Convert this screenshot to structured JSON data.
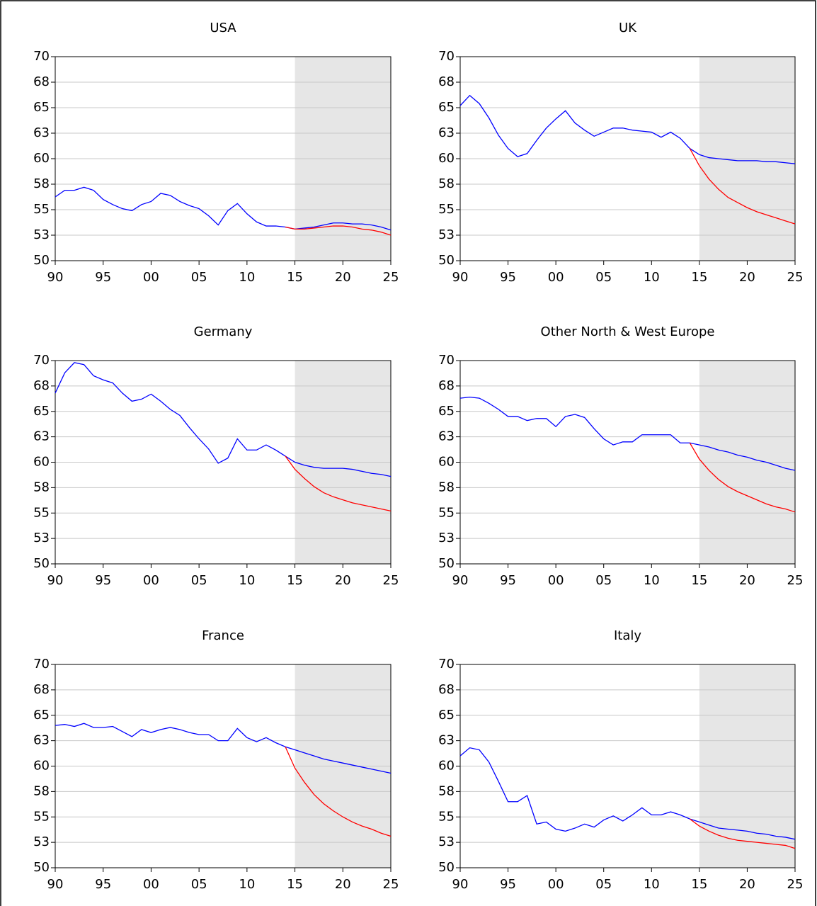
{
  "chart_data": [
    {
      "type": "line",
      "title": "USA",
      "x": [
        1990,
        1991,
        1992,
        1993,
        1994,
        1995,
        1996,
        1997,
        1998,
        1999,
        2000,
        2001,
        2002,
        2003,
        2004,
        2005,
        2006,
        2007,
        2008,
        2009,
        2010,
        2011,
        2012,
        2013,
        2014,
        2015,
        2016,
        2017,
        2018,
        2019,
        2020,
        2021,
        2022,
        2023,
        2024,
        2025
      ],
      "series": [
        {
          "color": "#0000ff",
          "values": [
            56.25,
            56.9,
            56.9,
            57.2,
            56.9,
            56.0,
            55.5,
            55.1,
            54.9,
            55.5,
            55.8,
            56.6,
            56.4,
            55.8,
            55.4,
            55.1,
            54.4,
            53.5,
            54.9,
            55.6,
            54.6,
            53.8,
            53.4,
            53.4,
            53.3,
            53.1,
            53.2,
            53.3,
            53.5,
            53.7,
            53.7,
            53.6,
            53.6,
            53.5,
            53.3,
            53.0
          ]
        },
        {
          "color": "#ff0000",
          "values": [
            null,
            null,
            null,
            null,
            null,
            null,
            null,
            null,
            null,
            null,
            null,
            null,
            null,
            null,
            null,
            null,
            null,
            null,
            null,
            null,
            null,
            null,
            null,
            null,
            53.3,
            53.1,
            53.1,
            53.2,
            53.3,
            53.4,
            53.4,
            53.3,
            53.1,
            53.0,
            52.8,
            52.5
          ]
        }
      ],
      "xlim": [
        1990,
        2025
      ],
      "ylim": [
        50,
        70
      ],
      "shaded_region": [
        2015,
        2025
      ],
      "grid": true,
      "xticks": [
        {
          "value": 1990,
          "label": "90"
        },
        {
          "value": 1995,
          "label": "95"
        },
        {
          "value": 2000,
          "label": "00"
        },
        {
          "value": 2005,
          "label": "05"
        },
        {
          "value": 2010,
          "label": "10"
        },
        {
          "value": 2015,
          "label": "15"
        },
        {
          "value": 2020,
          "label": "20"
        },
        {
          "value": 2025,
          "label": "25"
        }
      ],
      "yticks": [
        50,
        {
          "value": 52.5,
          "label": "53"
        },
        55,
        {
          "value": 57.5,
          "label": "58"
        },
        60,
        {
          "value": 62.5,
          "label": "63"
        },
        65,
        {
          "value": 67.5,
          "label": "68"
        },
        70
      ]
    },
    {
      "type": "line",
      "title": "UK",
      "x": [
        1990,
        1991,
        1992,
        1993,
        1994,
        1995,
        1996,
        1997,
        1998,
        1999,
        2000,
        2001,
        2002,
        2003,
        2004,
        2005,
        2006,
        2007,
        2008,
        2009,
        2010,
        2011,
        2012,
        2013,
        2014,
        2015,
        2016,
        2017,
        2018,
        2019,
        2020,
        2021,
        2022,
        2023,
        2024,
        2025
      ],
      "series": [
        {
          "color": "#0000ff",
          "values": [
            65.2,
            66.2,
            65.4,
            64.0,
            62.3,
            61.0,
            60.2,
            60.5,
            61.8,
            63.0,
            63.9,
            64.7,
            63.5,
            62.8,
            62.2,
            62.6,
            63.0,
            63.0,
            62.8,
            62.7,
            62.6,
            62.1,
            62.6,
            62.0,
            61.0,
            60.4,
            60.1,
            60.0,
            59.9,
            59.8,
            59.8,
            59.8,
            59.7,
            59.7,
            59.6,
            59.5
          ]
        },
        {
          "color": "#ff0000",
          "values": [
            null,
            null,
            null,
            null,
            null,
            null,
            null,
            null,
            null,
            null,
            null,
            null,
            null,
            null,
            null,
            null,
            null,
            null,
            null,
            null,
            null,
            null,
            null,
            null,
            61.0,
            59.3,
            58.0,
            57.0,
            56.2,
            55.7,
            55.2,
            54.8,
            54.5,
            54.2,
            53.9,
            53.6
          ]
        }
      ],
      "xlim": [
        1990,
        2025
      ],
      "ylim": [
        50,
        70
      ],
      "shaded_region": [
        2015,
        2025
      ],
      "grid": true,
      "xticks": [
        {
          "value": 1990,
          "label": "90"
        },
        {
          "value": 1995,
          "label": "95"
        },
        {
          "value": 2000,
          "label": "00"
        },
        {
          "value": 2005,
          "label": "05"
        },
        {
          "value": 2010,
          "label": "10"
        },
        {
          "value": 2015,
          "label": "15"
        },
        {
          "value": 2020,
          "label": "20"
        },
        {
          "value": 2025,
          "label": "25"
        }
      ],
      "yticks": [
        50,
        {
          "value": 52.5,
          "label": "53"
        },
        55,
        {
          "value": 57.5,
          "label": "58"
        },
        60,
        {
          "value": 62.5,
          "label": "63"
        },
        65,
        {
          "value": 67.5,
          "label": "68"
        },
        70
      ]
    },
    {
      "type": "line",
      "title": "Germany",
      "x": [
        1990,
        1991,
        1992,
        1993,
        1994,
        1995,
        1996,
        1997,
        1998,
        1999,
        2000,
        2001,
        2002,
        2003,
        2004,
        2005,
        2006,
        2007,
        2008,
        2009,
        2010,
        2011,
        2012,
        2013,
        2014,
        2015,
        2016,
        2017,
        2018,
        2019,
        2020,
        2021,
        2022,
        2023,
        2024,
        2025
      ],
      "series": [
        {
          "color": "#0000ff",
          "values": [
            66.8,
            68.8,
            69.8,
            69.6,
            68.5,
            68.1,
            67.8,
            66.8,
            66.0,
            66.2,
            66.7,
            66.0,
            65.2,
            64.6,
            63.4,
            62.3,
            61.3,
            59.9,
            60.4,
            62.3,
            61.2,
            61.2,
            61.7,
            61.2,
            60.6,
            60.0,
            59.7,
            59.5,
            59.4,
            59.4,
            59.4,
            59.3,
            59.1,
            58.9,
            58.8,
            58.6
          ]
        },
        {
          "color": "#ff0000",
          "values": [
            null,
            null,
            null,
            null,
            null,
            null,
            null,
            null,
            null,
            null,
            null,
            null,
            null,
            null,
            null,
            null,
            null,
            null,
            null,
            null,
            null,
            null,
            null,
            null,
            60.6,
            59.3,
            58.4,
            57.6,
            57.0,
            56.6,
            56.3,
            56.0,
            55.8,
            55.6,
            55.4,
            55.2
          ]
        }
      ],
      "xlim": [
        1990,
        2025
      ],
      "ylim": [
        50,
        70
      ],
      "shaded_region": [
        2015,
        2025
      ],
      "grid": true,
      "xticks": [
        {
          "value": 1990,
          "label": "90"
        },
        {
          "value": 1995,
          "label": "95"
        },
        {
          "value": 2000,
          "label": "00"
        },
        {
          "value": 2005,
          "label": "05"
        },
        {
          "value": 2010,
          "label": "10"
        },
        {
          "value": 2015,
          "label": "15"
        },
        {
          "value": 2020,
          "label": "20"
        },
        {
          "value": 2025,
          "label": "25"
        }
      ],
      "yticks": [
        50,
        {
          "value": 52.5,
          "label": "53"
        },
        55,
        {
          "value": 57.5,
          "label": "58"
        },
        60,
        {
          "value": 62.5,
          "label": "63"
        },
        65,
        {
          "value": 67.5,
          "label": "68"
        },
        70
      ]
    },
    {
      "type": "line",
      "title": "Other North & West Europe",
      "x": [
        1990,
        1991,
        1992,
        1993,
        1994,
        1995,
        1996,
        1997,
        1998,
        1999,
        2000,
        2001,
        2002,
        2003,
        2004,
        2005,
        2006,
        2007,
        2008,
        2009,
        2010,
        2011,
        2012,
        2013,
        2014,
        2015,
        2016,
        2017,
        2018,
        2019,
        2020,
        2021,
        2022,
        2023,
        2024,
        2025
      ],
      "series": [
        {
          "color": "#0000ff",
          "values": [
            66.3,
            66.4,
            66.3,
            65.8,
            65.2,
            64.5,
            64.5,
            64.1,
            64.3,
            64.3,
            63.5,
            64.5,
            64.7,
            64.4,
            63.3,
            62.3,
            61.7,
            62.0,
            62.0,
            62.7,
            62.7,
            62.7,
            62.7,
            61.9,
            61.9,
            61.7,
            61.5,
            61.2,
            61.0,
            60.7,
            60.5,
            60.2,
            60.0,
            59.7,
            59.4,
            59.2
          ]
        },
        {
          "color": "#ff0000",
          "values": [
            null,
            null,
            null,
            null,
            null,
            null,
            null,
            null,
            null,
            null,
            null,
            null,
            null,
            null,
            null,
            null,
            null,
            null,
            null,
            null,
            null,
            null,
            null,
            null,
            61.9,
            60.3,
            59.2,
            58.3,
            57.6,
            57.1,
            56.7,
            56.3,
            55.9,
            55.6,
            55.4,
            55.1
          ]
        }
      ],
      "xlim": [
        1990,
        2025
      ],
      "ylim": [
        50,
        70
      ],
      "shaded_region": [
        2015,
        2025
      ],
      "grid": true,
      "xticks": [
        {
          "value": 1990,
          "label": "90"
        },
        {
          "value": 1995,
          "label": "95"
        },
        {
          "value": 2000,
          "label": "00"
        },
        {
          "value": 2005,
          "label": "05"
        },
        {
          "value": 2010,
          "label": "10"
        },
        {
          "value": 2015,
          "label": "15"
        },
        {
          "value": 2020,
          "label": "20"
        },
        {
          "value": 2025,
          "label": "25"
        }
      ],
      "yticks": [
        50,
        {
          "value": 52.5,
          "label": "53"
        },
        55,
        {
          "value": 57.5,
          "label": "58"
        },
        60,
        {
          "value": 62.5,
          "label": "63"
        },
        65,
        {
          "value": 67.5,
          "label": "68"
        },
        70
      ]
    },
    {
      "type": "line",
      "title": "France",
      "x": [
        1990,
        1991,
        1992,
        1993,
        1994,
        1995,
        1996,
        1997,
        1998,
        1999,
        2000,
        2001,
        2002,
        2003,
        2004,
        2005,
        2006,
        2007,
        2008,
        2009,
        2010,
        2011,
        2012,
        2013,
        2014,
        2015,
        2016,
        2017,
        2018,
        2019,
        2020,
        2021,
        2022,
        2023,
        2024,
        2025
      ],
      "series": [
        {
          "color": "#0000ff",
          "values": [
            64.0,
            64.1,
            63.9,
            64.2,
            63.8,
            63.8,
            63.9,
            63.4,
            62.9,
            63.6,
            63.3,
            63.6,
            63.8,
            63.6,
            63.3,
            63.1,
            63.1,
            62.5,
            62.5,
            63.7,
            62.8,
            62.4,
            62.8,
            62.3,
            61.9,
            61.6,
            61.3,
            61.0,
            60.7,
            60.5,
            60.3,
            60.1,
            59.9,
            59.7,
            59.5,
            59.3
          ]
        },
        {
          "color": "#ff0000",
          "values": [
            null,
            null,
            null,
            null,
            null,
            null,
            null,
            null,
            null,
            null,
            null,
            null,
            null,
            null,
            null,
            null,
            null,
            null,
            null,
            null,
            null,
            null,
            null,
            null,
            61.9,
            59.8,
            58.4,
            57.2,
            56.3,
            55.6,
            55.0,
            54.5,
            54.1,
            53.8,
            53.4,
            53.1
          ]
        }
      ],
      "xlim": [
        1990,
        2025
      ],
      "ylim": [
        50,
        70
      ],
      "shaded_region": [
        2015,
        2025
      ],
      "grid": true,
      "xticks": [
        {
          "value": 1990,
          "label": "90"
        },
        {
          "value": 1995,
          "label": "95"
        },
        {
          "value": 2000,
          "label": "00"
        },
        {
          "value": 2005,
          "label": "05"
        },
        {
          "value": 2010,
          "label": "10"
        },
        {
          "value": 2015,
          "label": "15"
        },
        {
          "value": 2020,
          "label": "20"
        },
        {
          "value": 2025,
          "label": "25"
        }
      ],
      "yticks": [
        50,
        {
          "value": 52.5,
          "label": "53"
        },
        55,
        {
          "value": 57.5,
          "label": "58"
        },
        60,
        {
          "value": 62.5,
          "label": "63"
        },
        65,
        {
          "value": 67.5,
          "label": "68"
        },
        70
      ]
    },
    {
      "type": "line",
      "title": "Italy",
      "x": [
        1990,
        1991,
        1992,
        1993,
        1994,
        1995,
        1996,
        1997,
        1998,
        1999,
        2000,
        2001,
        2002,
        2003,
        2004,
        2005,
        2006,
        2007,
        2008,
        2009,
        2010,
        2011,
        2012,
        2013,
        2014,
        2015,
        2016,
        2017,
        2018,
        2019,
        2020,
        2021,
        2022,
        2023,
        2024,
        2025
      ],
      "series": [
        {
          "color": "#0000ff",
          "values": [
            61.0,
            61.8,
            61.6,
            60.4,
            58.5,
            56.5,
            56.5,
            57.1,
            54.3,
            54.5,
            53.8,
            53.6,
            53.9,
            54.3,
            54.0,
            54.7,
            55.1,
            54.6,
            55.2,
            55.9,
            55.2,
            55.2,
            55.5,
            55.2,
            54.8,
            54.5,
            54.2,
            53.9,
            53.8,
            53.7,
            53.6,
            53.4,
            53.3,
            53.1,
            53.0,
            52.8
          ]
        },
        {
          "color": "#ff0000",
          "values": [
            null,
            null,
            null,
            null,
            null,
            null,
            null,
            null,
            null,
            null,
            null,
            null,
            null,
            null,
            null,
            null,
            null,
            null,
            null,
            null,
            null,
            null,
            null,
            null,
            54.8,
            54.1,
            53.6,
            53.2,
            52.9,
            52.7,
            52.6,
            52.5,
            52.4,
            52.3,
            52.2,
            51.9
          ]
        }
      ],
      "xlim": [
        1990,
        2025
      ],
      "ylim": [
        50,
        70
      ],
      "shaded_region": [
        2015,
        2025
      ],
      "grid": true,
      "xticks": [
        {
          "value": 1990,
          "label": "90"
        },
        {
          "value": 1995,
          "label": "95"
        },
        {
          "value": 2000,
          "label": "00"
        },
        {
          "value": 2005,
          "label": "05"
        },
        {
          "value": 2010,
          "label": "10"
        },
        {
          "value": 2015,
          "label": "15"
        },
        {
          "value": 2020,
          "label": "20"
        },
        {
          "value": 2025,
          "label": "25"
        }
      ],
      "yticks": [
        50,
        {
          "value": 52.5,
          "label": "53"
        },
        55,
        {
          "value": 57.5,
          "label": "58"
        },
        60,
        {
          "value": 62.5,
          "label": "63"
        },
        65,
        {
          "value": 67.5,
          "label": "68"
        },
        70
      ]
    }
  ]
}
